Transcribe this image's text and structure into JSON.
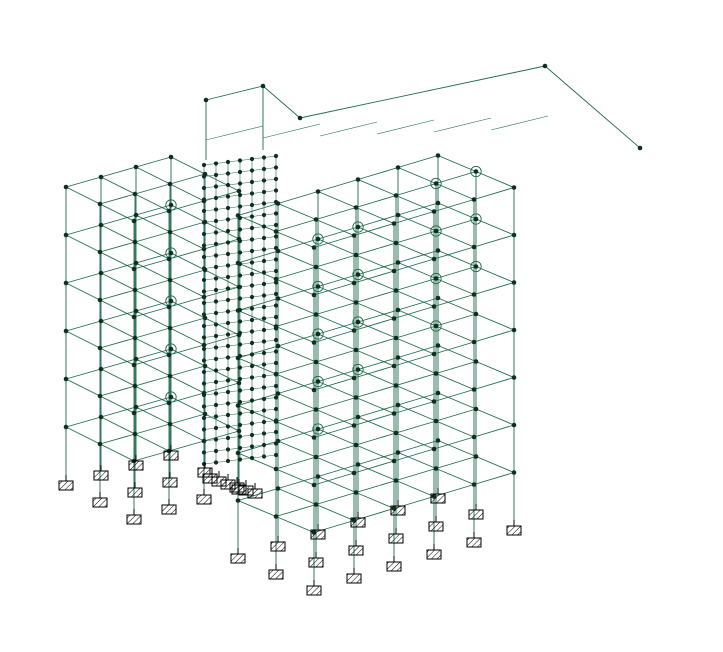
{
  "view": {
    "projection": "isometric",
    "background": "#ffffff"
  },
  "colors": {
    "member": "#1e6b4c",
    "node": "#0f2e20",
    "support": "#000000",
    "hinge": "#1e6b4c"
  },
  "model": {
    "type": "3d-frame-structure",
    "storeys": 8,
    "support_symbol": "fixed-support-icon",
    "node_symbol": "node-dot-icon",
    "hinge_symbol": "circled-node-icon",
    "blocks": [
      {
        "name": "left-wing",
        "grid_x": 4,
        "grid_y": 5
      },
      {
        "name": "core-wall-mesh",
        "grid_x": 4,
        "grid_y": 11
      },
      {
        "name": "right-wing",
        "grid_x": 5,
        "grid_y": 6
      }
    ]
  }
}
